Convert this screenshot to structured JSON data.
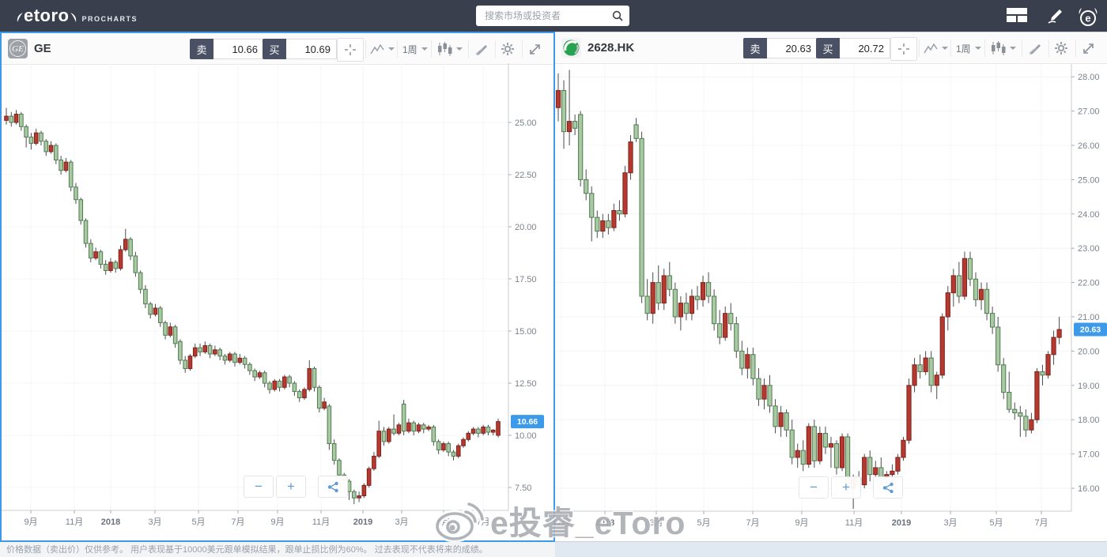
{
  "topbar": {
    "brand": "etoro",
    "brand_sub": "PROCHARTS",
    "search_placeholder": "搜索市场或投资者",
    "icons": [
      "search-icon",
      "layout-grid-icon",
      "draw-icon",
      "etoro-bull-icon"
    ]
  },
  "theme": {
    "accent_blue": "#3d9ae8",
    "topbar_bg": "#3a3f4d",
    "up_fill": "#b5392e",
    "up_border": "#7d231d",
    "down_fill": "#a9c9a2",
    "down_border": "#4f7b50",
    "wick": "#4c4c4c",
    "grid": "#f3f4f6",
    "axis": "#c9ccd1",
    "label": "#7b828c"
  },
  "zoom": {
    "minus": "−",
    "plus": "+"
  },
  "watermark": {
    "text": "e投睿_eToro",
    "icon": "weibo-eye-icon"
  },
  "disclaimer": "价格数据（卖出价）仅供参考。 用户表现基于10000美元跟单模拟结果，跟单止损比例为60%。 过去表现不代表将来的成绩。",
  "panels": [
    {
      "symbol": "GE",
      "logo": "ge-monogram",
      "toolbar": {
        "sell_label": "卖",
        "sell_price": "10.66",
        "buy_label": "买",
        "buy_price": "10.69",
        "interval": "1周",
        "icons": [
          "crosshair-icon",
          "chart-type-icon",
          "interval-dropdown",
          "candle-style-icon",
          "indicators-icon",
          "settings-icon",
          "expand-icon"
        ]
      },
      "badge": "10.66",
      "selected": true
    },
    {
      "symbol": "2628.HK",
      "logo": "chinalife-globe",
      "toolbar": {
        "sell_label": "卖",
        "sell_price": "20.63",
        "buy_label": "买",
        "buy_price": "20.72",
        "interval": "1周",
        "icons": [
          "crosshair-icon",
          "chart-type-icon",
          "interval-dropdown",
          "candle-style-icon",
          "indicators-icon",
          "settings-icon",
          "expand-icon"
        ]
      },
      "badge": "20.63",
      "selected": false
    }
  ],
  "chart_data": [
    {
      "type": "candlestick",
      "symbol": "GE",
      "interval": "1周",
      "convention": "red=up green=down (Chinese convention)",
      "ylim": [
        6.5,
        27.5
      ],
      "grid": true,
      "last_price": 10.66,
      "y_ticks": [
        "25.00",
        "22.50",
        "20.00",
        "17.50",
        "15.00",
        "12.50",
        "10.00",
        "7.50"
      ],
      "x_ticks": [
        "9月",
        "11月",
        "2018",
        "3月",
        "5月",
        "7月",
        "9月",
        "11月",
        "2019",
        "3月",
        "5月",
        "7月"
      ],
      "ohlc": [
        [
          25.1,
          25.7,
          24.9,
          25.3
        ],
        [
          25.3,
          25.5,
          24.8,
          25.0
        ],
        [
          25.0,
          25.6,
          24.9,
          25.4
        ],
        [
          25.4,
          25.5,
          24.6,
          24.8
        ],
        [
          24.8,
          24.9,
          23.8,
          24.3
        ],
        [
          24.3,
          24.5,
          23.7,
          24.0
        ],
        [
          24.0,
          24.7,
          23.9,
          24.5
        ],
        [
          24.5,
          24.6,
          23.9,
          24.1
        ],
        [
          24.1,
          24.2,
          23.4,
          23.6
        ],
        [
          23.6,
          24.1,
          23.5,
          23.9
        ],
        [
          23.9,
          24.0,
          23.0,
          23.2
        ],
        [
          23.2,
          23.4,
          22.5,
          22.7
        ],
        [
          22.7,
          23.3,
          22.6,
          23.1
        ],
        [
          23.1,
          23.2,
          21.7,
          21.9
        ],
        [
          21.9,
          22.1,
          21.1,
          21.3
        ],
        [
          21.3,
          21.4,
          20.1,
          20.3
        ],
        [
          20.3,
          20.4,
          19.0,
          19.2
        ],
        [
          19.2,
          19.4,
          18.3,
          18.5
        ],
        [
          18.5,
          19.0,
          18.4,
          18.8
        ],
        [
          18.8,
          18.9,
          18.0,
          18.2
        ],
        [
          18.2,
          18.4,
          17.7,
          17.9
        ],
        [
          17.9,
          18.5,
          17.8,
          18.3
        ],
        [
          18.3,
          18.4,
          17.8,
          18.0
        ],
        [
          18.0,
          19.1,
          17.9,
          18.9
        ],
        [
          18.9,
          19.9,
          18.8,
          19.4
        ],
        [
          19.4,
          19.5,
          18.4,
          18.6
        ],
        [
          18.6,
          18.8,
          17.6,
          17.8
        ],
        [
          17.8,
          17.9,
          16.8,
          17.0
        ],
        [
          17.0,
          17.2,
          16.1,
          16.3
        ],
        [
          16.3,
          16.4,
          15.6,
          15.8
        ],
        [
          15.8,
          16.3,
          15.7,
          16.1
        ],
        [
          16.1,
          16.2,
          15.2,
          15.4
        ],
        [
          15.4,
          15.5,
          14.6,
          14.8
        ],
        [
          14.8,
          15.4,
          14.7,
          15.2
        ],
        [
          15.2,
          15.3,
          14.2,
          14.4
        ],
        [
          14.5,
          14.6,
          13.4,
          13.6
        ],
        [
          13.6,
          13.8,
          13.0,
          13.2
        ],
        [
          13.2,
          13.9,
          13.1,
          13.8
        ],
        [
          13.8,
          14.4,
          13.7,
          14.2
        ],
        [
          14.2,
          14.4,
          13.8,
          14.0
        ],
        [
          14.0,
          14.5,
          13.9,
          14.3
        ],
        [
          14.3,
          14.4,
          13.7,
          13.9
        ],
        [
          13.9,
          14.3,
          13.8,
          14.1
        ],
        [
          14.1,
          14.2,
          13.6,
          13.8
        ],
        [
          13.8,
          13.9,
          13.4,
          13.6
        ],
        [
          13.6,
          14.0,
          13.5,
          13.9
        ],
        [
          13.9,
          14.0,
          13.3,
          13.5
        ],
        [
          13.5,
          13.9,
          13.4,
          13.7
        ],
        [
          13.7,
          13.8,
          13.2,
          13.4
        ],
        [
          13.4,
          13.5,
          12.9,
          13.1
        ],
        [
          13.1,
          13.2,
          12.6,
          12.8
        ],
        [
          12.8,
          13.1,
          12.7,
          13.0
        ],
        [
          13.0,
          13.1,
          12.3,
          12.5
        ],
        [
          12.5,
          12.6,
          12.0,
          12.2
        ],
        [
          12.2,
          12.7,
          12.1,
          12.6
        ],
        [
          12.6,
          12.7,
          12.1,
          12.3
        ],
        [
          12.3,
          12.9,
          12.2,
          12.8
        ],
        [
          12.8,
          12.9,
          12.3,
          12.5
        ],
        [
          12.5,
          12.6,
          11.9,
          12.1
        ],
        [
          12.1,
          12.2,
          11.6,
          11.8
        ],
        [
          11.8,
          12.3,
          11.7,
          12.2
        ],
        [
          12.2,
          13.6,
          12.1,
          13.2
        ],
        [
          13.2,
          13.3,
          12.1,
          12.3
        ],
        [
          12.3,
          12.4,
          11.1,
          11.3
        ],
        [
          11.3,
          11.8,
          11.2,
          11.6
        ],
        [
          11.4,
          11.5,
          9.3,
          9.6
        ],
        [
          9.6,
          9.8,
          8.6,
          8.8
        ],
        [
          8.8,
          8.9,
          7.9,
          8.1
        ],
        [
          8.1,
          8.2,
          7.6,
          7.8
        ],
        [
          7.8,
          7.9,
          6.9,
          7.3
        ],
        [
          7.3,
          7.4,
          6.7,
          7.0
        ],
        [
          7.0,
          7.3,
          6.8,
          7.1
        ],
        [
          7.1,
          7.7,
          7.0,
          7.6
        ],
        [
          7.6,
          8.5,
          7.5,
          8.4
        ],
        [
          8.4,
          9.2,
          8.3,
          9.0
        ],
        [
          9.0,
          10.7,
          8.9,
          10.2
        ],
        [
          10.2,
          10.4,
          9.5,
          9.7
        ],
        [
          9.7,
          10.4,
          9.6,
          10.3
        ],
        [
          10.3,
          11.0,
          10.0,
          10.1
        ],
        [
          10.1,
          10.6,
          10.0,
          10.5
        ],
        [
          11.5,
          11.7,
          10.0,
          10.2
        ],
        [
          10.2,
          10.8,
          10.1,
          10.6
        ],
        [
          10.6,
          10.7,
          10.0,
          10.2
        ],
        [
          10.2,
          10.6,
          10.1,
          10.5
        ],
        [
          10.5,
          10.6,
          10.1,
          10.3
        ],
        [
          10.3,
          10.5,
          10.2,
          10.4
        ],
        [
          10.4,
          10.5,
          9.5,
          9.7
        ],
        [
          9.7,
          9.8,
          9.1,
          9.3
        ],
        [
          9.3,
          9.7,
          9.2,
          9.6
        ],
        [
          9.6,
          9.7,
          9.0,
          9.2
        ],
        [
          9.2,
          9.3,
          8.8,
          9.0
        ],
        [
          9.0,
          9.6,
          8.9,
          9.5
        ],
        [
          9.5,
          9.9,
          9.4,
          9.8
        ],
        [
          9.8,
          10.2,
          9.7,
          10.1
        ],
        [
          10.1,
          10.4,
          10.0,
          10.3
        ],
        [
          10.3,
          10.4,
          9.9,
          10.1
        ],
        [
          10.1,
          10.5,
          10.0,
          10.4
        ],
        [
          10.4,
          10.5,
          10.0,
          10.15
        ],
        [
          10.15,
          10.3,
          10.0,
          10.25
        ],
        [
          10.0,
          10.8,
          9.9,
          10.66
        ]
      ]
    },
    {
      "type": "candlestick",
      "symbol": "2628.HK",
      "interval": "1周",
      "convention": "red=up green=down (Chinese convention)",
      "ylim": [
        15.3,
        28.3
      ],
      "grid": true,
      "last_price": 20.63,
      "y_ticks": [
        "28.00",
        "27.00",
        "26.00",
        "25.00",
        "24.00",
        "23.00",
        "22.00",
        "21.00",
        "20.00",
        "19.00",
        "18.00",
        "17.00",
        "16.00"
      ],
      "x_ticks": [
        "11月",
        "2018",
        "3月",
        "5月",
        "7月",
        "9月",
        "11月",
        "2019",
        "3月",
        "5月",
        "7月"
      ],
      "ohlc": [
        [
          27.1,
          28.1,
          26.7,
          27.6
        ],
        [
          27.6,
          27.9,
          25.9,
          26.4
        ],
        [
          26.4,
          28.2,
          26.0,
          26.7
        ],
        [
          26.7,
          26.9,
          26.3,
          26.5
        ],
        [
          26.9,
          27.0,
          24.8,
          25.0
        ],
        [
          25.0,
          25.3,
          24.4,
          24.6
        ],
        [
          24.6,
          24.8,
          23.2,
          23.9
        ],
        [
          23.9,
          24.1,
          23.3,
          23.5
        ],
        [
          23.5,
          24.0,
          23.3,
          23.8
        ],
        [
          23.8,
          24.0,
          23.4,
          23.6
        ],
        [
          23.6,
          24.3,
          23.5,
          24.1
        ],
        [
          24.1,
          24.4,
          23.8,
          24.0
        ],
        [
          24.0,
          25.4,
          23.9,
          25.2
        ],
        [
          25.2,
          26.3,
          25.0,
          26.1
        ],
        [
          26.6,
          26.8,
          26.1,
          26.2
        ],
        [
          26.2,
          26.4,
          21.4,
          21.6
        ],
        [
          21.6,
          22.1,
          20.9,
          21.1
        ],
        [
          21.1,
          22.3,
          20.8,
          22.0
        ],
        [
          22.0,
          22.5,
          21.2,
          21.4
        ],
        [
          21.4,
          22.4,
          21.2,
          22.2
        ],
        [
          22.2,
          22.6,
          21.6,
          21.8
        ],
        [
          21.8,
          22.0,
          20.8,
          21.0
        ],
        [
          21.0,
          21.6,
          20.6,
          21.4
        ],
        [
          21.4,
          21.7,
          20.9,
          21.1
        ],
        [
          21.1,
          21.8,
          20.9,
          21.6
        ],
        [
          21.6,
          21.9,
          21.2,
          21.5
        ],
        [
          21.5,
          22.2,
          21.3,
          22.0
        ],
        [
          22.0,
          22.3,
          21.4,
          21.6
        ],
        [
          21.6,
          21.8,
          20.6,
          20.8
        ],
        [
          20.8,
          21.2,
          20.2,
          20.4
        ],
        [
          20.4,
          21.3,
          20.3,
          21.1
        ],
        [
          21.1,
          21.4,
          20.6,
          20.8
        ],
        [
          20.8,
          21.0,
          19.8,
          20.0
        ],
        [
          20.0,
          20.3,
          19.3,
          19.5
        ],
        [
          19.5,
          20.1,
          19.2,
          19.9
        ],
        [
          19.9,
          20.1,
          19.0,
          19.2
        ],
        [
          19.2,
          19.5,
          18.4,
          18.6
        ],
        [
          18.6,
          19.2,
          18.3,
          19.0
        ],
        [
          19.0,
          19.3,
          18.2,
          18.4
        ],
        [
          18.4,
          18.6,
          17.6,
          17.8
        ],
        [
          17.8,
          18.4,
          17.5,
          18.2
        ],
        [
          18.2,
          18.3,
          17.5,
          17.7
        ],
        [
          17.7,
          18.0,
          16.7,
          16.9
        ],
        [
          16.9,
          17.3,
          16.6,
          17.1
        ],
        [
          17.1,
          17.4,
          16.5,
          16.7
        ],
        [
          16.7,
          17.9,
          16.6,
          17.8
        ],
        [
          17.8,
          18.0,
          16.6,
          16.8
        ],
        [
          16.8,
          17.8,
          16.7,
          17.6
        ],
        [
          17.6,
          17.8,
          17.0,
          17.2
        ],
        [
          17.2,
          17.5,
          16.6,
          17.3
        ],
        [
          17.3,
          17.4,
          16.4,
          16.6
        ],
        [
          16.6,
          17.6,
          16.5,
          17.5
        ],
        [
          17.5,
          17.6,
          15.8,
          16.0
        ],
        [
          16.0,
          16.4,
          15.4,
          16.3
        ],
        [
          16.3,
          16.5,
          15.9,
          16.1
        ],
        [
          16.1,
          17.0,
          16.0,
          16.9
        ],
        [
          16.9,
          17.1,
          16.2,
          16.4
        ],
        [
          16.4,
          16.8,
          16.2,
          16.6
        ],
        [
          16.6,
          16.9,
          16.1,
          16.3
        ],
        [
          16.3,
          16.5,
          15.9,
          16.4
        ],
        [
          16.4,
          16.7,
          16.2,
          16.5
        ],
        [
          16.5,
          17.0,
          16.4,
          16.9
        ],
        [
          16.9,
          17.5,
          16.8,
          17.4
        ],
        [
          17.4,
          19.2,
          17.3,
          19.0
        ],
        [
          19.0,
          19.8,
          18.8,
          19.6
        ],
        [
          19.6,
          19.9,
          19.2,
          19.4
        ],
        [
          19.4,
          20.0,
          19.3,
          19.8
        ],
        [
          19.8,
          20.0,
          18.8,
          19.0
        ],
        [
          19.0,
          19.4,
          18.6,
          19.3
        ],
        [
          19.3,
          21.1,
          19.2,
          21.0
        ],
        [
          21.0,
          21.9,
          20.6,
          21.7
        ],
        [
          21.7,
          22.4,
          21.3,
          22.2
        ],
        [
          22.2,
          22.6,
          21.4,
          21.6
        ],
        [
          21.6,
          22.9,
          21.5,
          22.7
        ],
        [
          22.7,
          22.9,
          21.9,
          22.1
        ],
        [
          22.1,
          22.3,
          21.3,
          21.5
        ],
        [
          21.5,
          22.0,
          21.2,
          21.8
        ],
        [
          21.8,
          22.0,
          20.9,
          21.1
        ],
        [
          21.1,
          21.3,
          20.5,
          20.7
        ],
        [
          20.7,
          21.0,
          19.4,
          19.6
        ],
        [
          19.6,
          19.8,
          18.6,
          18.8
        ],
        [
          18.8,
          19.4,
          18.2,
          18.3
        ],
        [
          18.3,
          18.5,
          18.0,
          18.2
        ],
        [
          18.2,
          18.4,
          17.5,
          18.1
        ],
        [
          18.1,
          18.3,
          17.5,
          17.7
        ],
        [
          17.7,
          18.2,
          17.6,
          18.0
        ],
        [
          18.0,
          19.5,
          17.9,
          19.4
        ],
        [
          19.4,
          19.6,
          19.0,
          19.3
        ],
        [
          19.3,
          20.0,
          19.2,
          19.9
        ],
        [
          19.9,
          20.6,
          19.6,
          20.4
        ],
        [
          20.4,
          21.0,
          20.2,
          20.63
        ]
      ]
    }
  ]
}
